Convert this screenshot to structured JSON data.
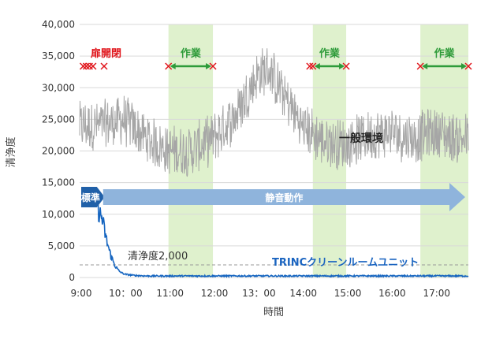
{
  "chart_data": {
    "type": "line",
    "xlabel": "時間",
    "ylabel": "清浄度",
    "ylim": [
      0,
      40000
    ],
    "xlim": [
      9.0,
      17.75
    ],
    "y_ticks": [
      0,
      5000,
      10000,
      15000,
      20000,
      25000,
      30000,
      35000,
      40000
    ],
    "y_tick_labels": [
      "0",
      "5,000",
      "10,000",
      "15,000",
      "20,000",
      "25,000",
      "30,000",
      "35,000",
      "40,000"
    ],
    "x_ticks": [
      9,
      10,
      11,
      12,
      13,
      14,
      15,
      16,
      17
    ],
    "x_tick_labels": [
      "9:00",
      "10：00",
      "11:00",
      "12:00",
      "13：00",
      "14:00",
      "15:00",
      "16:00",
      "17:00"
    ],
    "grid": "horizontal",
    "series": [
      {
        "name": "一般環境",
        "color": "#a6a6a6",
        "x": [
          9.0,
          9.5,
          10.0,
          10.5,
          11.0,
          11.5,
          12.0,
          12.5,
          13.0,
          13.25,
          13.5,
          14.0,
          14.5,
          15.0,
          15.5,
          16.0,
          16.5,
          17.0,
          17.5,
          17.75
        ],
        "values": [
          24000,
          24000,
          25000,
          22000,
          20000,
          20000,
          22000,
          25500,
          32000,
          33000,
          30000,
          24000,
          21500,
          21000,
          22500,
          23000,
          22000,
          23000,
          22000,
          22000
        ]
      },
      {
        "name": "TRINCクリーンルームユニット",
        "color": "#1565c0",
        "x": [
          9.0,
          9.35,
          9.4,
          9.45,
          9.5,
          9.6,
          9.7,
          9.8,
          9.9,
          10.0,
          10.2,
          10.5,
          11.0,
          12.0,
          13.0,
          14.0,
          15.0,
          16.0,
          17.0,
          17.75
        ],
        "values": [
          null,
          null,
          11500,
          10000,
          9500,
          6000,
          3500,
          1800,
          900,
          500,
          300,
          200,
          200,
          200,
          200,
          200,
          200,
          200,
          200,
          200
        ]
      }
    ],
    "reference_line": {
      "value": 2000,
      "label": "清浄度2,000"
    },
    "shaded_periods": [
      {
        "from": 11.0,
        "to": 12.0
      },
      {
        "from": 14.25,
        "to": 15.0
      },
      {
        "from": 16.67,
        "to": 17.75
      }
    ],
    "work_labels": [
      {
        "from": 11.0,
        "to": 12.0,
        "label": "作業"
      },
      {
        "from": 14.25,
        "to": 15.0,
        "label": "作業"
      },
      {
        "from": 16.67,
        "to": 17.75,
        "label": "作業"
      }
    ],
    "door_events": {
      "label": "扉開閉",
      "times": [
        9.08,
        9.15,
        9.22,
        9.3,
        9.55,
        14.18
      ]
    },
    "mode_arrows": [
      {
        "label": "標準",
        "from": 9.0,
        "to": 9.6
      },
      {
        "label": "静音動作",
        "from": 9.6,
        "to": 17.75
      }
    ],
    "annotations": {
      "general_label": "一般環境",
      "trinc_label": "TRINCクリーンルームユニット"
    }
  }
}
